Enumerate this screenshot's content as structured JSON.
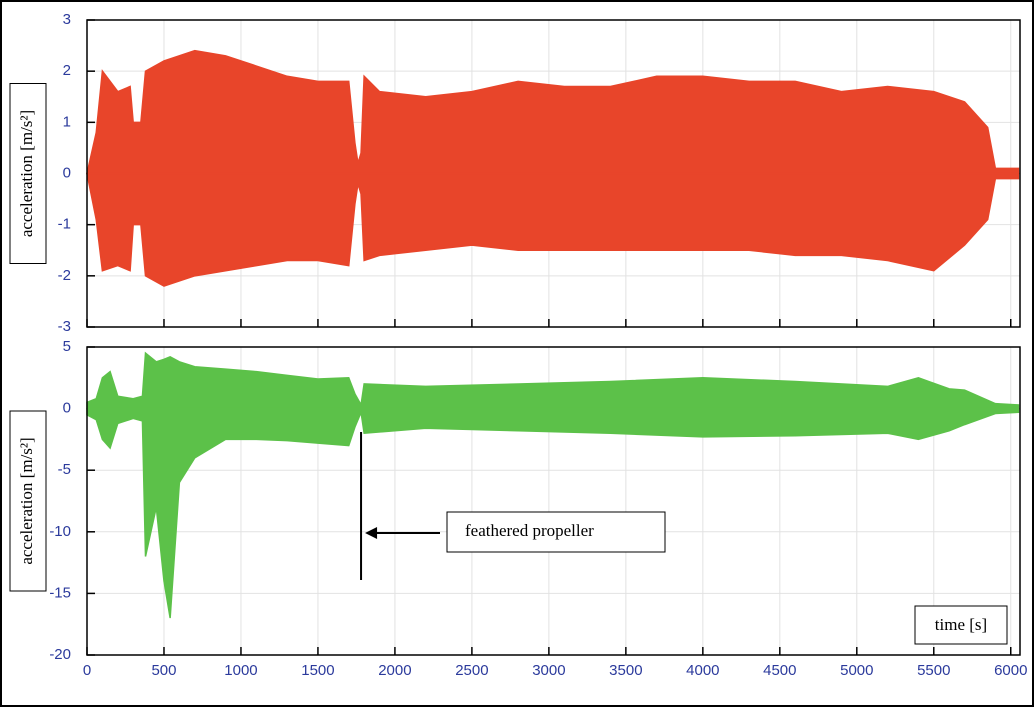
{
  "chart_data": [
    {
      "type": "area",
      "ylabel": "acceleration [m/s²]",
      "x": [
        0,
        60,
        100,
        200,
        280,
        300,
        350,
        380,
        500,
        700,
        900,
        1100,
        1300,
        1500,
        1700,
        1740,
        1760,
        1780,
        1800,
        1900,
        2200,
        2500,
        2800,
        3100,
        3400,
        3700,
        4000,
        4300,
        4600,
        4900,
        5200,
        5500,
        5700,
        5850,
        5900,
        6050
      ],
      "series": [
        {
          "color": "#e8452a",
          "values": [
            0,
            0.8,
            2.0,
            1.6,
            1.7,
            1.0,
            1.0,
            2.0,
            2.2,
            2.4,
            2.3,
            2.1,
            1.9,
            1.8,
            1.8,
            0.6,
            0.2,
            0.4,
            1.9,
            1.6,
            1.5,
            1.6,
            1.8,
            1.7,
            1.7,
            1.9,
            1.9,
            1.8,
            1.8,
            1.6,
            1.7,
            1.6,
            1.4,
            0.9,
            0.1,
            0.1
          ]
        },
        {
          "color": "#e8452a",
          "values": [
            0,
            -0.9,
            -1.9,
            -1.8,
            -1.9,
            -1.0,
            -1.0,
            -2.0,
            -2.2,
            -2.0,
            -1.9,
            -1.8,
            -1.7,
            -1.7,
            -1.8,
            -0.6,
            -0.2,
            -0.4,
            -1.7,
            -1.6,
            -1.5,
            -1.4,
            -1.5,
            -1.5,
            -1.5,
            -1.5,
            -1.5,
            -1.5,
            -1.6,
            -1.6,
            -1.7,
            -1.9,
            -1.4,
            -0.9,
            -0.1,
            -0.1
          ]
        }
      ],
      "xlim": [
        0,
        6060
      ],
      "xticks": [
        0,
        500,
        1000,
        1500,
        2000,
        2500,
        3000,
        3500,
        4000,
        4500,
        5000,
        5500,
        6000
      ],
      "ylim": [
        -3,
        3
      ],
      "yticks": [
        -3,
        -2,
        -1,
        0,
        1,
        2,
        3
      ],
      "grid": true
    },
    {
      "type": "area",
      "ylabel": "acceleration [m/s²]",
      "xlabel": "time [s]",
      "annotations": [
        {
          "text": "feathered propeller",
          "x": 1780
        }
      ],
      "x": [
        0,
        60,
        100,
        150,
        200,
        300,
        360,
        380,
        450,
        500,
        540,
        600,
        700,
        900,
        1100,
        1300,
        1500,
        1700,
        1740,
        1780,
        1800,
        2200,
        2800,
        3400,
        4000,
        4600,
        5200,
        5400,
        5600,
        5700,
        5900,
        6050
      ],
      "series": [
        {
          "color": "#5cc149",
          "values": [
            0.5,
            0.8,
            2.5,
            3,
            1,
            0.8,
            1,
            4.5,
            3.8,
            4,
            4.2,
            3.8,
            3.4,
            3.2,
            3.0,
            2.7,
            2.4,
            2.5,
            1.2,
            0.3,
            2.0,
            1.8,
            2.0,
            2.2,
            2.5,
            2.2,
            1.8,
            2.5,
            1.6,
            1.5,
            0.4,
            0.3
          ]
        },
        {
          "color": "#5cc149",
          "values": [
            -0.5,
            -0.9,
            -2.5,
            -3.2,
            -1.2,
            -0.8,
            -1,
            -12,
            -8,
            -14,
            -17,
            -6,
            -4,
            -2.5,
            -2.5,
            -2.6,
            -2.8,
            -3,
            -1.5,
            -0.3,
            -2.0,
            -1.6,
            -1.8,
            -2.0,
            -2.3,
            -2.2,
            -2.0,
            -2.5,
            -1.8,
            -1.3,
            -0.4,
            -0.3
          ]
        }
      ],
      "xlim": [
        0,
        6060
      ],
      "xticks": [
        0,
        500,
        1000,
        1500,
        2000,
        2500,
        3000,
        3500,
        4000,
        4500,
        5000,
        5500,
        6000
      ],
      "ylim": [
        -20,
        5
      ],
      "yticks": [
        -20,
        -15,
        -10,
        -5,
        0,
        5
      ],
      "grid": true
    }
  ]
}
